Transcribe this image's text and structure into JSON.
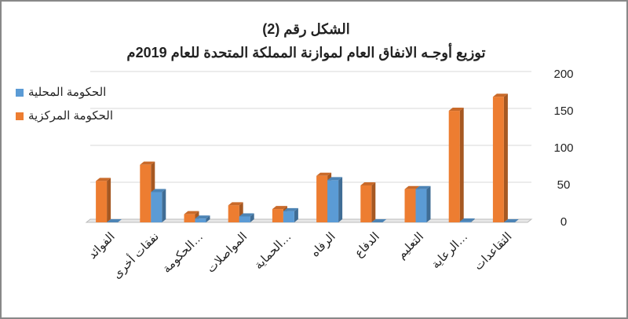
{
  "chart_data": {
    "type": "bar",
    "title": "الشكل رقم (2)",
    "subtitle": "توزيع أوجـه الانفاق العام لموازنة المملكة المتحدة للعام 2019م",
    "categories": [
      "الفوائد",
      "نفقات أخرى",
      "الحكومة…",
      "المواصلات",
      "الحماية…",
      "الرفاه",
      "الدفاع",
      "التعليم",
      "الرعاية…",
      "التقاعدات"
    ],
    "series": [
      {
        "name": "الحكومة المحلية",
        "color": "#5b9bd5",
        "values": [
          0,
          41,
          5,
          8,
          15,
          57,
          0,
          45,
          1,
          0
        ]
      },
      {
        "name": "الحكومة المركزية",
        "color": "#ed7d31",
        "values": [
          56,
          78,
          11,
          23,
          18,
          63,
          50,
          45,
          151,
          170
        ]
      }
    ],
    "ylim": [
      0,
      200
    ],
    "yticks": [
      0,
      50,
      100,
      150,
      200
    ],
    "grid": true,
    "legend": "top-left"
  }
}
